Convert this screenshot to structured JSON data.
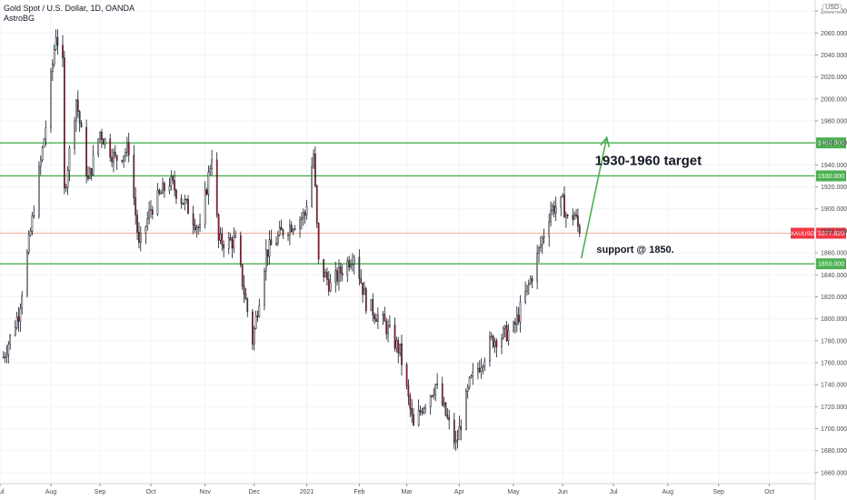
{
  "header": {
    "symbol_line": "Gold Spot / U.S. Dollar, 1D, OANDA",
    "author": "AstroBG",
    "currency": "USD"
  },
  "chart_data": {
    "type": "candlestick",
    "y_range": [
      1650,
      2090
    ],
    "y_ticks": [
      1660,
      1680,
      1700,
      1720,
      1740,
      1760,
      1780,
      1800,
      1820,
      1840,
      1860,
      1880,
      1900,
      1920,
      1940,
      1960,
      1980,
      2000,
      2020,
      2040,
      2060,
      2080
    ],
    "x_range": [
      "2020-07-04",
      "2021-10-28"
    ],
    "x_ticks": [
      {
        "date": "2020-07-04",
        "label": "Jul"
      },
      {
        "date": "2020-08-03",
        "label": "Aug"
      },
      {
        "date": "2020-09-01",
        "label": "Sep"
      },
      {
        "date": "2020-10-01",
        "label": "Oct"
      },
      {
        "date": "2020-11-02",
        "label": "Nov"
      },
      {
        "date": "2020-12-01",
        "label": "Dec"
      },
      {
        "date": "2021-01-01",
        "label": "2021"
      },
      {
        "date": "2021-02-01",
        "label": "Feb"
      },
      {
        "date": "2021-03-01",
        "label": "Mar"
      },
      {
        "date": "2021-04-01",
        "label": "Apr"
      },
      {
        "date": "2021-05-03",
        "label": "May"
      },
      {
        "date": "2021-06-01",
        "label": "Jun"
      },
      {
        "date": "2021-07-01",
        "label": "Jul"
      },
      {
        "date": "2021-08-02",
        "label": "Aug"
      },
      {
        "date": "2021-09-01",
        "label": "Sep"
      },
      {
        "date": "2021-10-01",
        "label": "Oct"
      }
    ],
    "anchors": [
      [
        "2020-07-06",
        1765
      ],
      [
        "2020-07-15",
        1805
      ],
      [
        "2020-07-24",
        1900
      ],
      [
        "2020-07-31",
        1975
      ],
      [
        "2020-08-06",
        2060
      ],
      [
        "2020-08-10",
        2030
      ],
      [
        "2020-08-11",
        1915
      ],
      [
        "2020-08-18",
        2000
      ],
      [
        "2020-08-25",
        1925
      ],
      [
        "2020-09-01",
        1970
      ],
      [
        "2020-09-10",
        1945
      ],
      [
        "2020-09-18",
        1955
      ],
      [
        "2020-09-24",
        1865
      ],
      [
        "2020-10-01",
        1900
      ],
      [
        "2020-10-12",
        1925
      ],
      [
        "2020-10-23",
        1900
      ],
      [
        "2020-10-30",
        1880
      ],
      [
        "2020-11-06",
        1950
      ],
      [
        "2020-11-10",
        1870
      ],
      [
        "2020-11-20",
        1870
      ],
      [
        "2020-11-30",
        1780
      ],
      [
        "2020-12-08",
        1860
      ],
      [
        "2020-12-18",
        1880
      ],
      [
        "2020-12-31",
        1895
      ],
      [
        "2021-01-05",
        1950
      ],
      [
        "2021-01-08",
        1850
      ],
      [
        "2021-01-15",
        1830
      ],
      [
        "2021-01-29",
        1860
      ],
      [
        "2021-02-05",
        1815
      ],
      [
        "2021-02-16",
        1795
      ],
      [
        "2021-02-25",
        1770
      ],
      [
        "2021-03-05",
        1700
      ],
      [
        "2021-03-10",
        1720
      ],
      [
        "2021-03-18",
        1740
      ],
      [
        "2021-03-30",
        1685
      ],
      [
        "2021-04-07",
        1740
      ],
      [
        "2021-04-20",
        1780
      ],
      [
        "2021-05-03",
        1790
      ],
      [
        "2021-05-14",
        1840
      ],
      [
        "2021-05-25",
        1900
      ],
      [
        "2021-06-01",
        1905
      ],
      [
        "2021-06-04",
        1890
      ],
      [
        "2021-06-08",
        1895
      ],
      [
        "2021-06-11",
        1877.82
      ]
    ],
    "horizontal_levels": [
      {
        "value": 1960,
        "label": "1960.000",
        "color": "#4caf50"
      },
      {
        "value": 1930,
        "label": "1930.000",
        "color": "#4caf50"
      },
      {
        "value": 1850,
        "label": "1850.000",
        "color": "#4caf50"
      }
    ],
    "last_price": {
      "value": 1877.82,
      "symbol": "XAUUSD",
      "label": "1877.820",
      "color": "#f23645"
    },
    "annotations": [
      {
        "text": "1930-1960 target",
        "date": "2021-06-20",
        "value": 1940,
        "size": 15
      },
      {
        "text": "support @ 1850.",
        "date": "2021-06-21",
        "value": 1860,
        "size": 11
      }
    ],
    "arrow": {
      "from": [
        "2021-06-12",
        1855
      ],
      "to": [
        "2021-06-27",
        1965
      ],
      "color": "#4caf50"
    }
  }
}
